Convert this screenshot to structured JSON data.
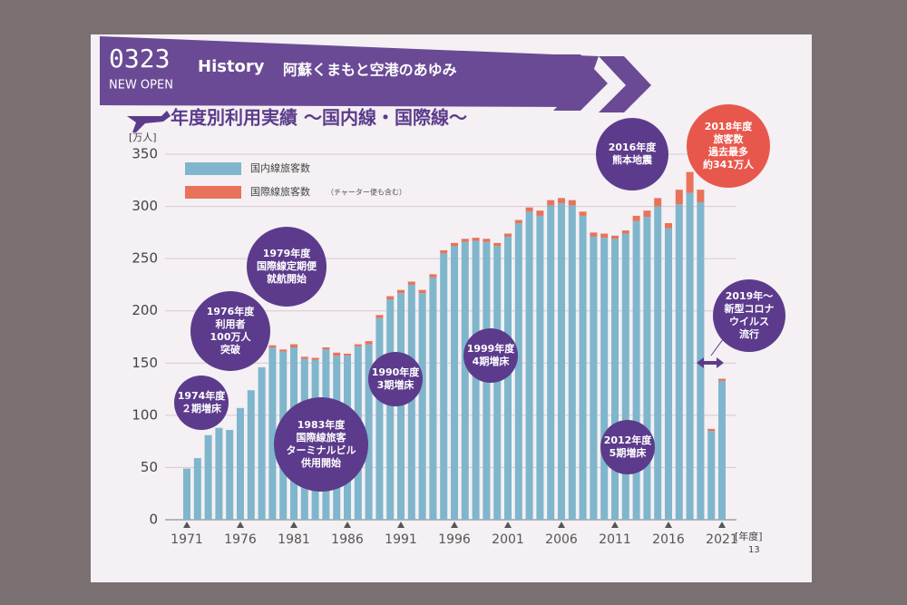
{
  "header": {
    "code": "0323",
    "sub": "NEW OPEN",
    "section": "History",
    "heading": "阿蘇くまもと空港のあゆみ"
  },
  "page_number": "13",
  "chart_data": {
    "type": "stacked_bar",
    "title": "年度別利用実績 ～国内線・国際線～",
    "y_unit": "[万人]",
    "x_unit": "[年度]",
    "categories": [
      "1971",
      null,
      null,
      null,
      null,
      "1976",
      null,
      null,
      null,
      null,
      "1981",
      null,
      null,
      null,
      null,
      "1986",
      null,
      null,
      null,
      null,
      "1991",
      null,
      null,
      null,
      null,
      "1996",
      null,
      null,
      null,
      null,
      "2001",
      null,
      null,
      null,
      null,
      "2006",
      null,
      null,
      null,
      null,
      "2011",
      null,
      null,
      null,
      null,
      "2016",
      null,
      null,
      null,
      null,
      "2021"
    ],
    "series": [
      {
        "name": "国内線旅客数",
        "color": "#7fb6cc",
        "values": [
          49,
          59,
          81,
          88,
          86,
          107,
          124,
          146,
          165,
          161,
          165,
          154,
          153,
          163,
          157,
          157,
          166,
          168,
          193,
          211,
          217,
          225,
          217,
          232,
          255,
          262,
          266,
          267,
          266,
          262,
          271,
          284,
          295,
          291,
          301,
          303,
          301,
          291,
          271,
          270,
          269,
          274,
          286,
          290,
          300,
          279,
          302,
          313,
          304,
          85,
          133
        ]
      },
      {
        "name": "国際線旅客数",
        "color": "#e8735a",
        "values": [
          0,
          0,
          0,
          0,
          0,
          0,
          0,
          0,
          2,
          2,
          3,
          2,
          2,
          2,
          3,
          2,
          2,
          3,
          3,
          3,
          3,
          3,
          3,
          3,
          3,
          3,
          3,
          3,
          3,
          3,
          3,
          3,
          4,
          5,
          5,
          5,
          5,
          4,
          4,
          4,
          3,
          3,
          5,
          6,
          8,
          5,
          14,
          20,
          12,
          2,
          2
        ]
      }
    ],
    "legend_note": "（チャーター便も含む）",
    "ylim": [
      0,
      350
    ],
    "yticks": [
      0,
      50,
      100,
      150,
      200,
      250,
      300,
      350
    ],
    "grid": true,
    "annotations": [
      {
        "lines": [
          "1974年度",
          "２期増床"
        ],
        "color": "#5c3b8c"
      },
      {
        "lines": [
          "1976年度",
          "利用者",
          "100万人",
          "突破"
        ],
        "color": "#5c3b8c"
      },
      {
        "lines": [
          "1979年度",
          "国際線定期便",
          "就航開始"
        ],
        "color": "#5c3b8c"
      },
      {
        "lines": [
          "1983年度",
          "国際線旅客",
          "ターミナルビル",
          "供用開始"
        ],
        "color": "#5c3b8c"
      },
      {
        "lines": [
          "1990年度",
          "3期増床"
        ],
        "color": "#5c3b8c"
      },
      {
        "lines": [
          "1999年度",
          "4期増床"
        ],
        "color": "#5c3b8c"
      },
      {
        "lines": [
          "2012年度",
          "5期増床"
        ],
        "color": "#5c3b8c"
      },
      {
        "lines": [
          "2016年度",
          "熊本地震"
        ],
        "color": "#5c3b8c"
      },
      {
        "lines": [
          "2018年度",
          "旅客数",
          "過去最多",
          "約341万人"
        ],
        "color": "#e8574c"
      },
      {
        "lines": [
          "2019年～",
          "新型コロナ",
          "ウイルス",
          "流行"
        ],
        "color": "#5c3b8c"
      }
    ]
  }
}
